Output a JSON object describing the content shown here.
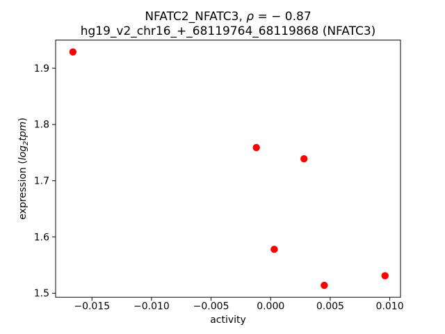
{
  "labels": {
    "title_prefix": "NFATC2_NFATC3, ",
    "title_rho": "ρ",
    "title_suffix": " = − 0.87",
    "subtitle": "hg19_v2_chr16_+_68119764_68119868 (NFATC3)",
    "xlabel": "activity",
    "ylabel_prefix": "expression (",
    "ylabel_log": "log",
    "ylabel_sub": "2",
    "ylabel_tpm": "tpm",
    "ylabel_suffix": ")"
  },
  "chart_data": {
    "type": "scatter",
    "title": "NFATC2_NFATC3, ρ = − 0.87",
    "subtitle": "hg19_v2_chr16_+_68119764_68119868 (NFATC3)",
    "correlation_rho": -0.87,
    "xlabel": "activity",
    "ylabel": "expression (log2 tpm)",
    "grid": false,
    "legend": "none",
    "marker": "circle",
    "marker_color": "#ff0000",
    "axis_color": "#000000",
    "xlim": [
      -0.01805,
      0.0109
    ],
    "ylim": [
      1.4928,
      1.9501
    ],
    "xticks": {
      "values": [
        -0.015,
        -0.01,
        -0.005,
        0.0,
        0.005,
        0.01
      ],
      "labels": [
        "−0.015",
        "−0.010",
        "−0.005",
        "0.000",
        "0.005",
        "0.010"
      ]
    },
    "yticks": {
      "values": [
        1.5,
        1.6,
        1.7,
        1.8,
        1.9
      ],
      "labels": [
        "1.5",
        "1.6",
        "1.7",
        "1.8",
        "1.9"
      ]
    },
    "series": [
      {
        "name": "samples",
        "color": "#ff0000",
        "points": [
          {
            "x": -0.0166,
            "y": 1.929
          },
          {
            "x": -0.0012,
            "y": 1.759
          },
          {
            "x": 0.0003,
            "y": 1.578
          },
          {
            "x": 0.0028,
            "y": 1.739
          },
          {
            "x": 0.0045,
            "y": 1.514
          },
          {
            "x": 0.0096,
            "y": 1.531
          }
        ]
      }
    ]
  }
}
